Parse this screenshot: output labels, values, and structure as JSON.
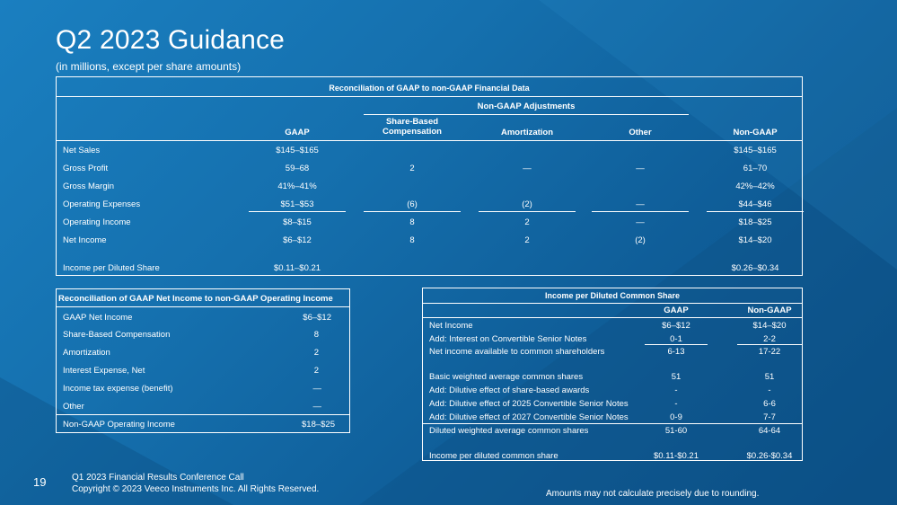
{
  "page": {
    "title": "Q2 2023 Guidance",
    "subtitle": "(in millions, except per share amounts)"
  },
  "main_table": {
    "title": "Reconciliation of GAAP to non-GAAP Financial Data",
    "adjustments_header": "Non-GAAP Adjustments",
    "columns": [
      "GAAP",
      "Share-Based Compensation",
      "Amortization",
      "Other",
      "Non-GAAP"
    ],
    "rows": [
      {
        "label": "Net Sales",
        "gaap": "$145–$165",
        "sbc": "",
        "amort": "",
        "other": "",
        "nongaap": "$145–$165"
      },
      {
        "label": "Gross Profit",
        "gaap": "59–68",
        "sbc": "2",
        "amort": "—",
        "other": "—",
        "nongaap": "61–70"
      },
      {
        "label": "Gross Margin",
        "gaap": "41%–41%",
        "sbc": "",
        "amort": "",
        "other": "",
        "nongaap": "42%–42%"
      },
      {
        "label": "Operating Expenses",
        "gaap": "$51–$53",
        "sbc": "(6)",
        "amort": "(2)",
        "other": "—",
        "nongaap": "$44–$46"
      },
      {
        "label": "Operating Income",
        "gaap": "$8–$15",
        "sbc": "8",
        "amort": "2",
        "other": "—",
        "nongaap": "$18–$25"
      },
      {
        "label": "Net Income",
        "gaap": "$6–$12",
        "sbc": "8",
        "amort": "2",
        "other": "(2)",
        "nongaap": "$14–$20"
      },
      {
        "label": "Income per Diluted Share",
        "gaap": "$0.11–$0.21",
        "sbc": "",
        "amort": "",
        "other": "",
        "nongaap": "$0.26–$0.34"
      }
    ]
  },
  "left_table": {
    "title": "Reconciliation of GAAP Net Income to non-GAAP Operating Income",
    "rows": [
      {
        "label": "GAAP Net Income",
        "value": "$6–$12"
      },
      {
        "label": "Share-Based Compensation",
        "value": "8"
      },
      {
        "label": "Amortization",
        "value": "2"
      },
      {
        "label": "Interest Expense, Net",
        "value": "2"
      },
      {
        "label": "Income tax expense (benefit)",
        "value": "—"
      },
      {
        "label": "Other",
        "value": "—"
      },
      {
        "label": "Non-GAAP Operating Income",
        "value": "$18–$25"
      }
    ]
  },
  "right_table": {
    "title": "Income per Diluted Common Share",
    "columns": [
      "GAAP",
      "Non-GAAP"
    ],
    "rows": [
      {
        "label": "Net Income",
        "gaap": "$6–$12",
        "nongaap": "$14–$20"
      },
      {
        "label": "Add: Interest on Convertible Senior Notes",
        "gaap": "0-1",
        "nongaap": "2-2"
      },
      {
        "label": "Net income available to common shareholders",
        "gaap": "6-13",
        "nongaap": "17-22"
      },
      {
        "label": "Basic weighted average common shares",
        "gaap": "51",
        "nongaap": "51"
      },
      {
        "label": "Add: Dilutive effect of share-based awards",
        "gaap": "-",
        "nongaap": "-"
      },
      {
        "label": "Add: Dilutive effect of 2025 Convertible Senior Notes",
        "gaap": "-",
        "nongaap": "6-6"
      },
      {
        "label": "Add: Dilutive effect of 2027 Convertible Senior Notes",
        "gaap": "0-9",
        "nongaap": "7-7"
      },
      {
        "label": "Diluted weighted average common shares",
        "gaap": "51-60",
        "nongaap": "64-64"
      },
      {
        "label": "Income per diluted common share",
        "gaap": "$0.11-$0.21",
        "nongaap": "$0.26-$0.34"
      }
    ]
  },
  "footer": {
    "page_number": "19",
    "line1": "Q1 2023 Financial Results Conference Call",
    "line2": "Copyright © 2023 Veeco Instruments Inc. All Rights Reserved.",
    "note": "Amounts may not calculate precisely due to rounding."
  },
  "colors": {
    "background": "#1570ae",
    "text": "#ffffff"
  }
}
